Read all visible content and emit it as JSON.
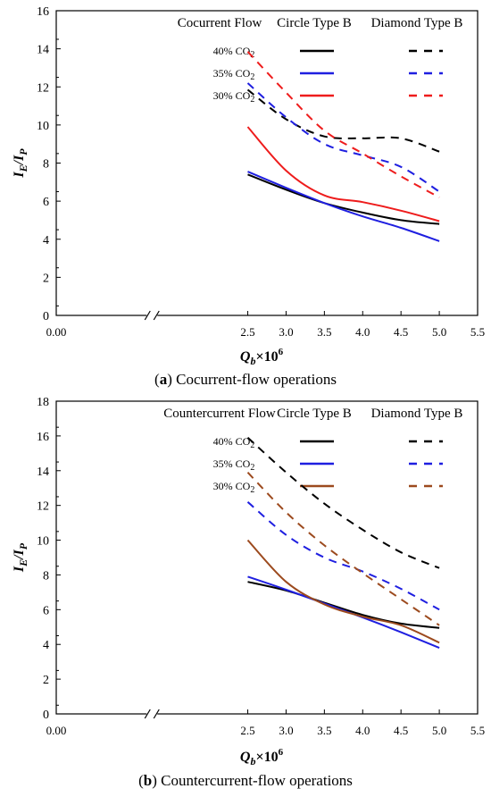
{
  "chart_data": [
    {
      "type": "line",
      "panel": "a",
      "caption": {
        "letter": "a",
        "text": "Cocurrent-flow operations"
      },
      "xlabel": "Q_b×10^6",
      "ylabel": "I_E/I_P",
      "xlim": [
        0.0,
        5.5
      ],
      "ylim": [
        0,
        16
      ],
      "xticks": [
        "0.00",
        "2.5",
        "3.0",
        "3.5",
        "4.0",
        "4.5",
        "5.0",
        "5.5"
      ],
      "yticks": [
        0,
        2,
        4,
        6,
        8,
        10,
        12,
        14,
        16
      ],
      "axis_break": "between 0.00 and 2.5",
      "legend": {
        "flow_label": "Cocurrent Flow",
        "circle_label": "Circle Type B",
        "diamond_label": "Diamond Type B",
        "rows": [
          "40% CO2",
          "35% CO2",
          "30% CO2"
        ]
      },
      "x": [
        2.5,
        3.0,
        3.5,
        4.0,
        4.5,
        5.0
      ],
      "series": [
        {
          "name": "40% CO2 Circle Type B",
          "color": "#000000",
          "style": "solid",
          "values": [
            7.4,
            6.6,
            5.9,
            5.4,
            5.0,
            4.8
          ]
        },
        {
          "name": "35% CO2 Circle Type B",
          "color": "#1f1fe0",
          "style": "solid",
          "values": [
            7.55,
            6.7,
            5.9,
            5.2,
            4.6,
            3.9
          ]
        },
        {
          "name": "30% CO2 Circle Type B",
          "color": "#ee1c1c",
          "style": "solid",
          "values": [
            9.9,
            7.6,
            6.3,
            5.95,
            5.5,
            4.95
          ]
        },
        {
          "name": "40% CO2 Diamond Type B",
          "color": "#000000",
          "style": "dashed",
          "values": [
            11.85,
            10.3,
            9.4,
            9.3,
            9.3,
            8.6
          ]
        },
        {
          "name": "35% CO2 Diamond Type B",
          "color": "#1f1fe0",
          "style": "dashed",
          "values": [
            12.2,
            10.4,
            9.0,
            8.4,
            7.8,
            6.5
          ]
        },
        {
          "name": "30% CO2 Diamond Type B",
          "color": "#ee1c1c",
          "style": "dashed",
          "values": [
            13.85,
            11.7,
            9.7,
            8.5,
            7.3,
            6.2
          ]
        }
      ]
    },
    {
      "type": "line",
      "panel": "b",
      "caption": {
        "letter": "b",
        "text": "Countercurrent-flow operations"
      },
      "xlabel": "Q_b×10^6",
      "ylabel": "I_E/I_P",
      "xlim": [
        0.0,
        5.5
      ],
      "ylim": [
        0,
        18
      ],
      "xticks": [
        "0.00",
        "2.5",
        "3.0",
        "3.5",
        "4.0",
        "4.5",
        "5.0",
        "5.5"
      ],
      "yticks": [
        0,
        2,
        4,
        6,
        8,
        10,
        12,
        14,
        16,
        18
      ],
      "axis_break": "between 0.00 and 2.5",
      "legend": {
        "flow_label": "Countercurrent Flow",
        "circle_label": "Circle Type B",
        "diamond_label": "Diamond Type B",
        "rows": [
          "40% CO2",
          "35% CO2",
          "30% CO2"
        ]
      },
      "x": [
        2.5,
        3.0,
        3.5,
        4.0,
        4.5,
        5.0
      ],
      "series": [
        {
          "name": "40% CO2 Circle Type B",
          "color": "#000000",
          "style": "solid",
          "values": [
            7.6,
            7.1,
            6.4,
            5.7,
            5.2,
            4.95
          ]
        },
        {
          "name": "35% CO2 Circle Type B",
          "color": "#1f1fe0",
          "style": "solid",
          "values": [
            7.9,
            7.15,
            6.35,
            5.55,
            4.7,
            3.8
          ]
        },
        {
          "name": "30% CO2 Circle Type B",
          "color": "#9c4a1e",
          "style": "solid",
          "values": [
            10.0,
            7.6,
            6.3,
            5.6,
            5.1,
            4.1
          ]
        },
        {
          "name": "40% CO2 Diamond Type B",
          "color": "#000000",
          "style": "dashed",
          "values": [
            15.9,
            13.9,
            12.1,
            10.6,
            9.3,
            8.4
          ]
        },
        {
          "name": "35% CO2 Diamond Type B",
          "color": "#1f1fe0",
          "style": "dashed",
          "values": [
            12.2,
            10.3,
            9.0,
            8.2,
            7.2,
            6.0
          ]
        },
        {
          "name": "30% CO2 Diamond Type B",
          "color": "#9c4a1e",
          "style": "dashed",
          "values": [
            13.9,
            11.6,
            9.7,
            8.1,
            6.6,
            5.1
          ]
        }
      ]
    }
  ]
}
